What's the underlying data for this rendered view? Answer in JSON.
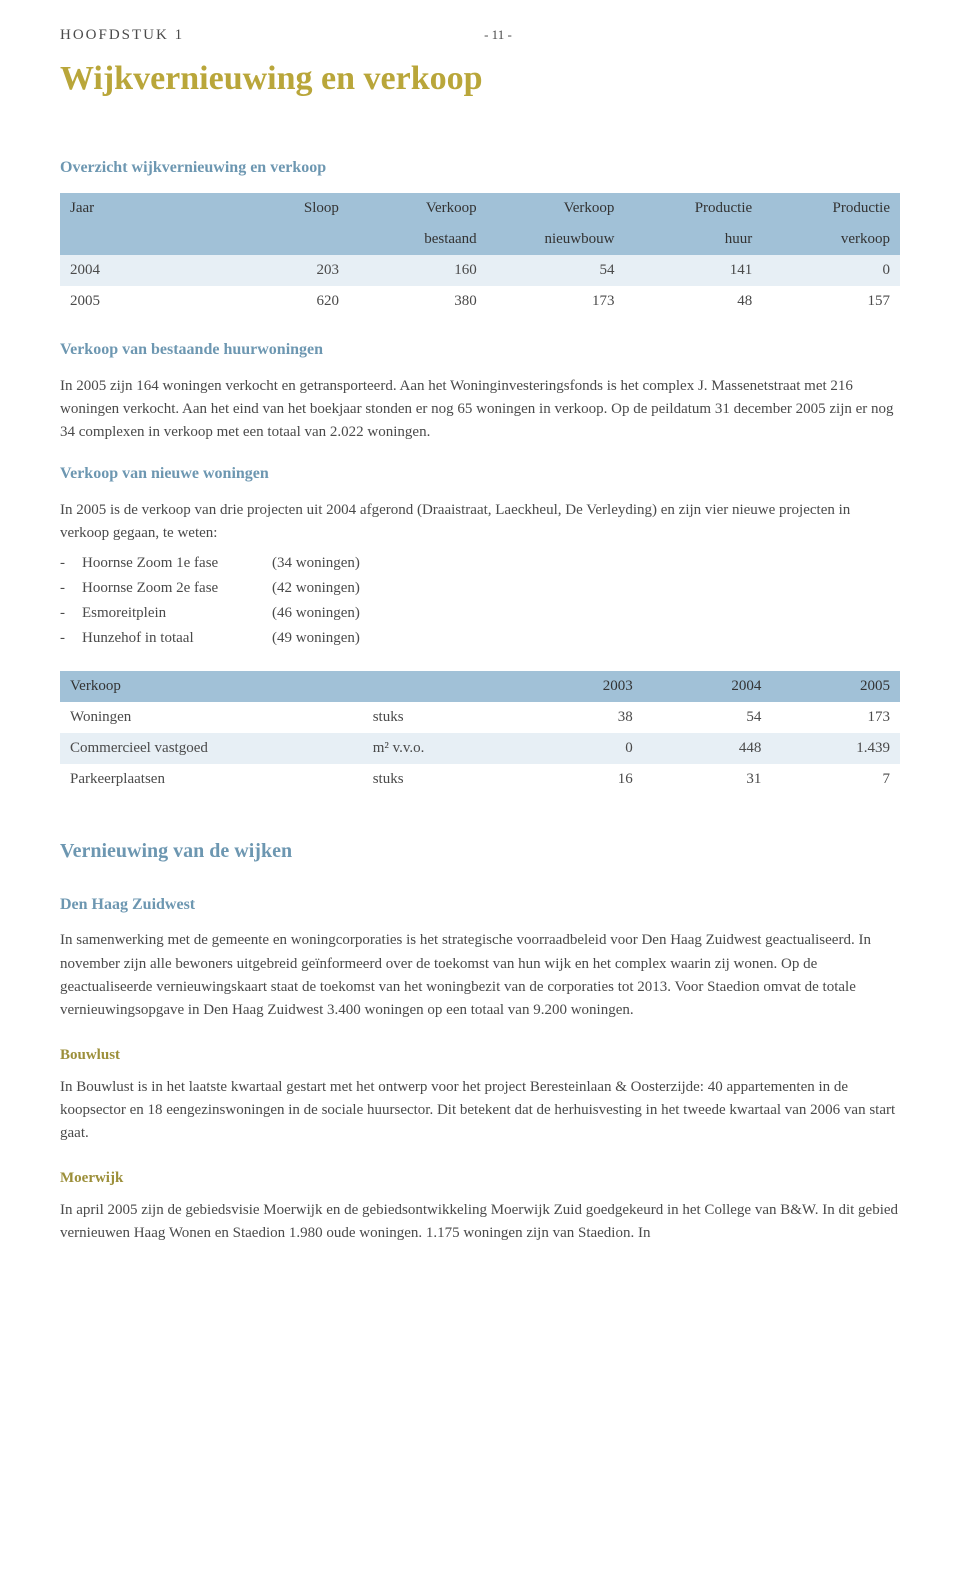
{
  "chapter_label": "HOOFDSTUK 1",
  "page_number": "- 11 -",
  "title": "Wijkvernieuwing en verkoop",
  "colors": {
    "title": "#b9a63a",
    "blue_heading": "#6d97b1",
    "olive_heading": "#9c8f3a",
    "table_header_bg": "#a1c1d7",
    "table_row_bg": "#e7eff5",
    "body_text": "#4a4a4a"
  },
  "overview": {
    "heading": "Overzicht wijkvernieuwing en verkoop",
    "columns": [
      "Jaar",
      "Sloop",
      "Verkoop bestaand",
      "Verkoop nieuwbouw",
      "Productie huur",
      "Productie verkoop"
    ],
    "header_row1": [
      "Jaar",
      "Sloop",
      "Verkoop",
      "Verkoop",
      "Productie",
      "Productie"
    ],
    "header_row2": [
      "",
      "",
      "bestaand",
      "nieuwbouw",
      "huur",
      "verkoop"
    ],
    "rows": [
      [
        "2004",
        "203",
        "160",
        "54",
        "141",
        "0"
      ],
      [
        "2005",
        "620",
        "380",
        "173",
        "48",
        "157"
      ]
    ]
  },
  "sale_existing": {
    "heading": "Verkoop van bestaande huurwoningen",
    "para": "In 2005 zijn 164 woningen verkocht en getransporteerd. Aan het Woninginvesteringsfonds is het complex J. Massenetstraat met 216 woningen verkocht. Aan het eind van het boekjaar stonden er nog 65 woningen in verkoop. Op de peildatum 31 december 2005 zijn er nog 34 complexen in verkoop met een totaal van 2.022 woningen."
  },
  "sale_new": {
    "heading": "Verkoop van nieuwe woningen",
    "para": "In 2005 is de verkoop van drie projecten uit 2004 afgerond (Draaistraat, Laeckheul, De Verleyding) en zijn vier nieuwe projecten in verkoop gegaan, te weten:",
    "projects": [
      {
        "name": "Hoornse Zoom 1e fase",
        "qty": "(34 woningen)"
      },
      {
        "name": "Hoornse Zoom 2e fase",
        "qty": "(42 woningen)"
      },
      {
        "name": "Esmoreitplein",
        "qty": "(46 woningen)"
      },
      {
        "name": "Hunzehof in totaal",
        "qty": "(49 woningen)"
      }
    ]
  },
  "sale_table": {
    "header": [
      "Verkoop",
      "",
      "2003",
      "2004",
      "2005"
    ],
    "rows": [
      [
        "Woningen",
        "stuks",
        "38",
        "54",
        "173"
      ],
      [
        "Commercieel vastgoed",
        "m² v.v.o.",
        "0",
        "448",
        "1.439"
      ],
      [
        "Parkeerplaatsen",
        "stuks",
        "16",
        "31",
        "7"
      ]
    ]
  },
  "renewal": {
    "heading": "Vernieuwing van de wijken",
    "denhaag": {
      "heading": "Den Haag Zuidwest",
      "para": "In samenwerking met de gemeente en woningcorporaties is het strategische voorraadbeleid voor Den Haag Zuidwest geactualiseerd. In november zijn alle bewoners uitgebreid geïnformeerd over de toekomst van hun wijk en het complex waarin zij wonen. Op de geactualiseerde vernieuwingskaart staat de toekomst van het woningbezit van de corporaties tot 2013. Voor Staedion omvat de totale vernieuwingsopgave in Den Haag Zuidwest 3.400 woningen op een totaal van 9.200 woningen."
    },
    "bouwlust": {
      "heading": "Bouwlust",
      "para": "In Bouwlust is in het laatste kwartaal gestart met het ontwerp voor het project Beresteinlaan & Oosterzijde: 40 appartementen in de koopsector en 18 eengezinswoningen in de sociale huursector. Dit betekent dat de herhuisvesting in het tweede kwartaal van 2006 van start gaat."
    },
    "moerwijk": {
      "heading": "Moerwijk",
      "para": "In april 2005 zijn de gebiedsvisie Moerwijk en de gebiedsontwikkeling Moerwijk Zuid goedgekeurd in het College van B&W. In dit gebied vernieuwen Haag Wonen en Staedion 1.980 oude woningen. 1.175 woningen zijn van Staedion. In"
    }
  }
}
